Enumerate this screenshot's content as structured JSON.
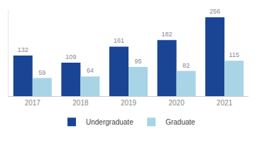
{
  "chart_data": {
    "type": "bar",
    "categories": [
      "2017",
      "2018",
      "2019",
      "2020",
      "2021"
    ],
    "series": [
      {
        "name": "Undergraduate",
        "color": "#1a4494",
        "values": [
          132,
          109,
          161,
          182,
          256
        ]
      },
      {
        "name": "Graduate",
        "color": "#a8d4e6",
        "values": [
          59,
          64,
          95,
          82,
          115
        ]
      }
    ],
    "ylim": [
      0,
      280
    ],
    "data_labels": true,
    "tick_labels": "x",
    "legend": "bottom",
    "grid": false
  }
}
